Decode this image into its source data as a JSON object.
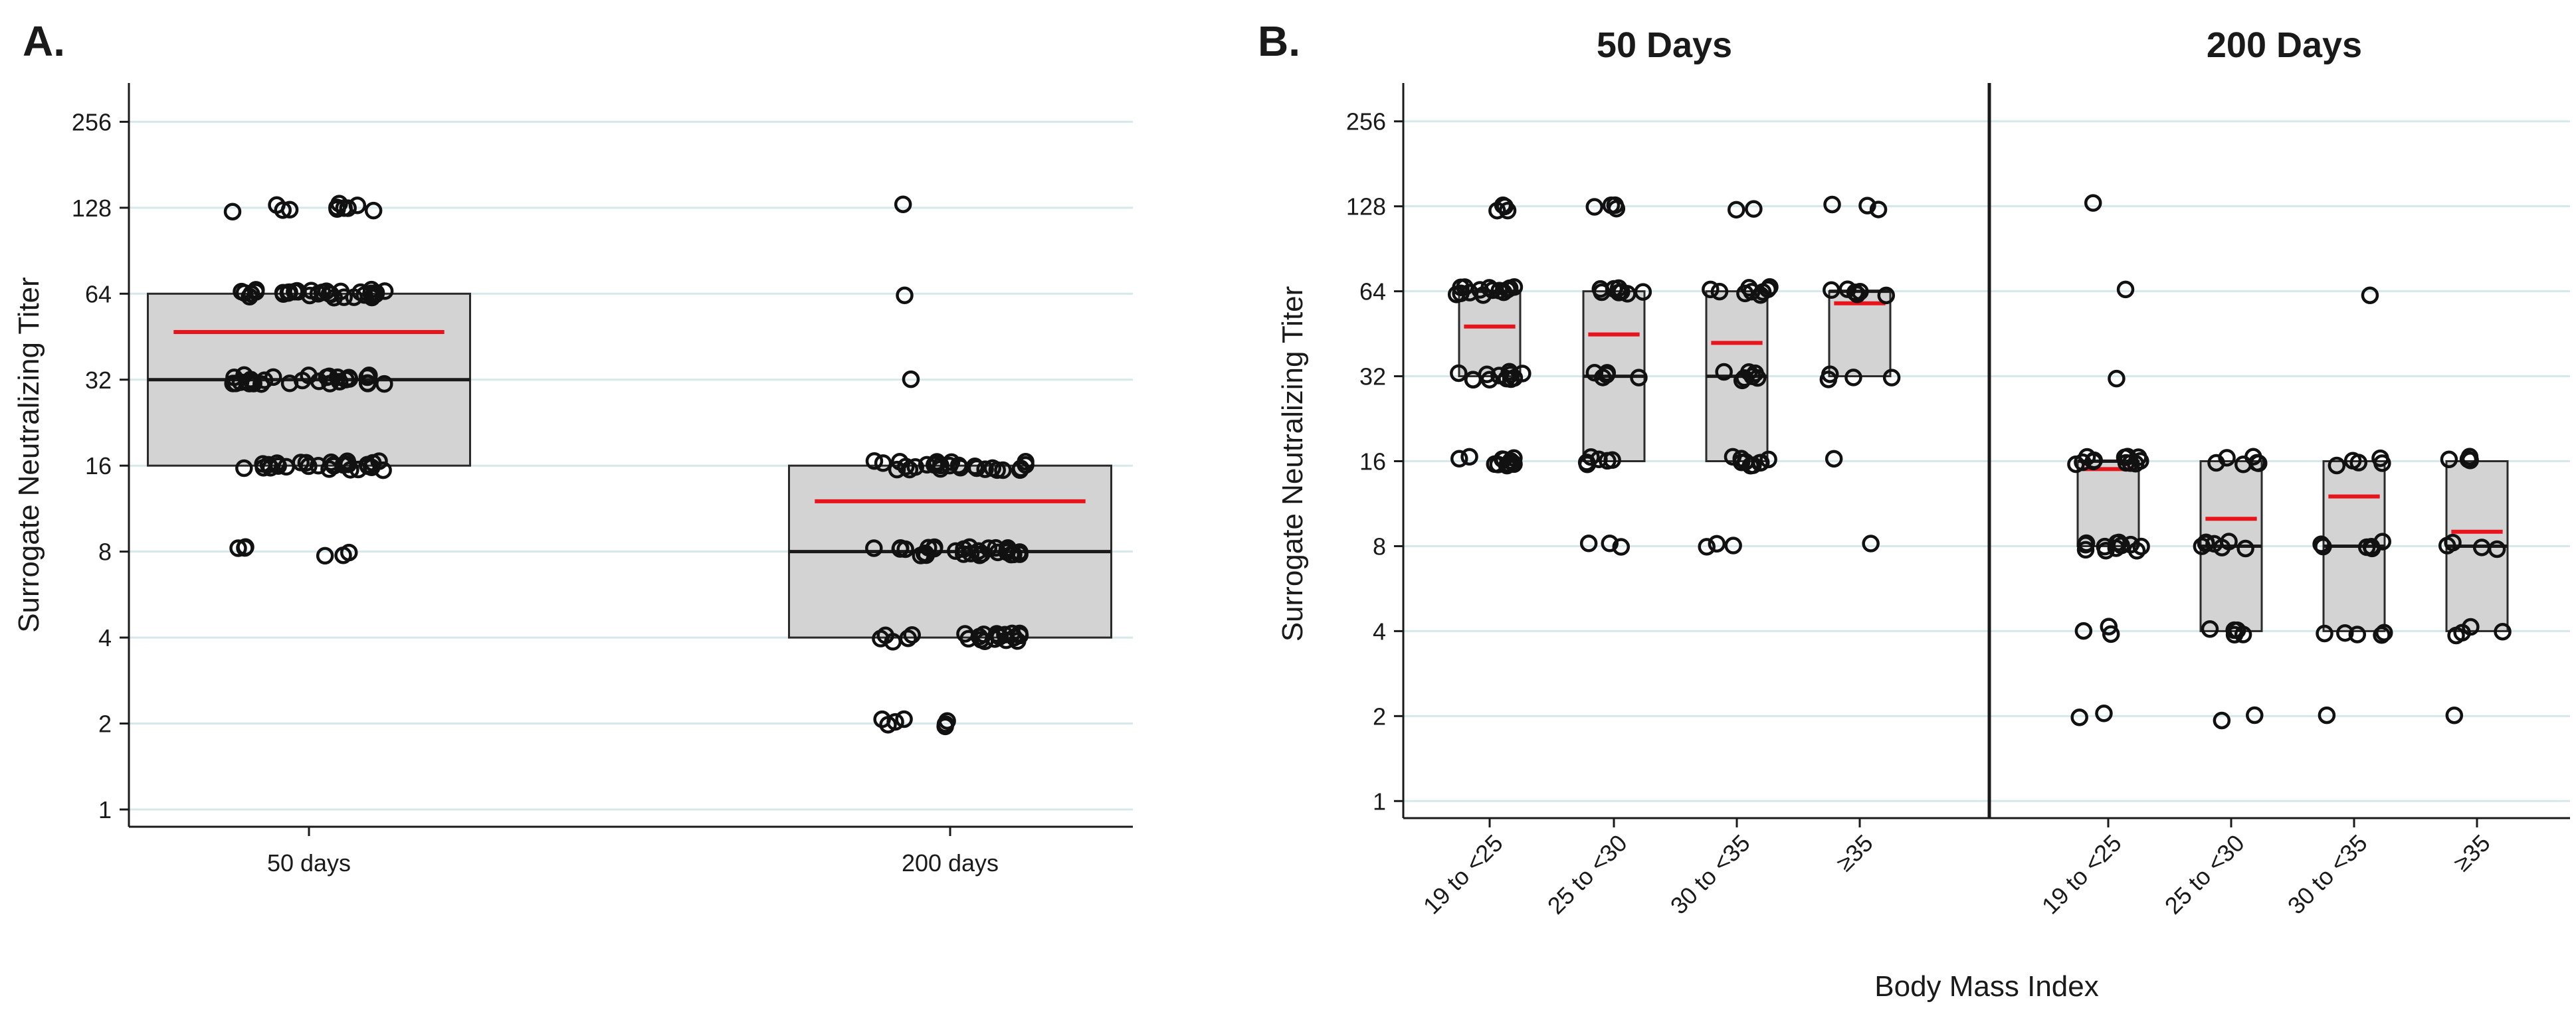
{
  "chart_data": [
    {
      "panel": "A.",
      "type": "box-strip",
      "ylabel": "Surrogate Neutralizing Titer",
      "xlabel": "",
      "y_scale": "log2",
      "yticks": [
        1,
        2,
        4,
        8,
        16,
        32,
        64,
        128,
        256
      ],
      "ytick_labels": [
        "1",
        "2",
        "4",
        "8",
        "16",
        "32",
        "64",
        "128",
        "256"
      ],
      "ylim": [
        0.87,
        350
      ],
      "grid": true,
      "categories": [
        "50 days",
        "200 days"
      ],
      "boxes": [
        {
          "q1": 16,
          "median": 32,
          "q3": 64,
          "mean": 47
        },
        {
          "q1": 4,
          "median": 8,
          "q3": 16,
          "mean": 12
        }
      ],
      "points": [
        [
          {
            "v": 128,
            "n": 11
          },
          {
            "v": 64,
            "n": 34
          },
          {
            "v": 32,
            "n": 30
          },
          {
            "v": 16,
            "n": 28
          },
          {
            "v": 8,
            "n": 6
          }
        ],
        [
          {
            "v": 128,
            "n": 1
          },
          {
            "v": 64,
            "n": 1
          },
          {
            "v": 32,
            "n": 1
          },
          {
            "v": 16,
            "n": 28
          },
          {
            "v": 8,
            "n": 30
          },
          {
            "v": 4,
            "n": 22
          },
          {
            "v": 2,
            "n": 7
          }
        ]
      ]
    },
    {
      "panel": "B.",
      "type": "box-strip",
      "ylabel": "Surrogate Neutralizing Titer",
      "xlabel": "Body Mass Index",
      "y_scale": "log2",
      "yticks": [
        1,
        2,
        4,
        8,
        16,
        32,
        64,
        128,
        256
      ],
      "ytick_labels": [
        "1",
        "2",
        "4",
        "8",
        "16",
        "32",
        "64",
        "128",
        "256"
      ],
      "ylim": [
        0.87,
        350
      ],
      "grid": true,
      "groups": [
        "50 Days",
        "200 Days"
      ],
      "categories": [
        "19 to <25",
        "25 to <30",
        "30 to <35",
        "≥35",
        "19 to <25",
        "25 to <30",
        "30 to <35",
        "≥35"
      ],
      "boxes": [
        {
          "q1": 32,
          "median": 64,
          "q3": 64,
          "mean": 48
        },
        {
          "q1": 16,
          "median": 32,
          "q3": 64,
          "mean": 45
        },
        {
          "q1": 16,
          "median": 32,
          "q3": 64,
          "mean": 42
        },
        {
          "q1": 32,
          "median": 64,
          "q3": 64,
          "mean": 58
        },
        {
          "q1": 8,
          "median": 16,
          "q3": 16,
          "mean": 15
        },
        {
          "q1": 4,
          "median": 8,
          "q3": 16,
          "mean": 10
        },
        {
          "q1": 4,
          "median": 8,
          "q3": 16,
          "mean": 12
        },
        {
          "q1": 4,
          "median": 8,
          "q3": 16,
          "mean": 9
        }
      ],
      "points": [
        [
          {
            "v": 128,
            "n": 4
          },
          {
            "v": 64,
            "n": 14
          },
          {
            "v": 32,
            "n": 12
          },
          {
            "v": 16,
            "n": 12
          }
        ],
        [
          {
            "v": 128,
            "n": 4
          },
          {
            "v": 64,
            "n": 8
          },
          {
            "v": 32,
            "n": 5
          },
          {
            "v": 16,
            "n": 6
          },
          {
            "v": 8,
            "n": 3
          }
        ],
        [
          {
            "v": 128,
            "n": 2
          },
          {
            "v": 64,
            "n": 9
          },
          {
            "v": 32,
            "n": 7
          },
          {
            "v": 16,
            "n": 9
          },
          {
            "v": 8,
            "n": 3
          }
        ],
        [
          {
            "v": 128,
            "n": 3
          },
          {
            "v": 64,
            "n": 7
          },
          {
            "v": 32,
            "n": 4
          },
          {
            "v": 16,
            "n": 1
          },
          {
            "v": 8,
            "n": 1
          }
        ],
        [
          {
            "v": 128,
            "n": 1
          },
          {
            "v": 64,
            "n": 1
          },
          {
            "v": 32,
            "n": 1
          },
          {
            "v": 16,
            "n": 12
          },
          {
            "v": 8,
            "n": 12
          },
          {
            "v": 4,
            "n": 3
          },
          {
            "v": 2,
            "n": 2
          }
        ],
        [
          {
            "v": 16,
            "n": 6
          },
          {
            "v": 8,
            "n": 7
          },
          {
            "v": 4,
            "n": 5
          },
          {
            "v": 2,
            "n": 2
          }
        ],
        [
          {
            "v": 64,
            "n": 1
          },
          {
            "v": 16,
            "n": 5
          },
          {
            "v": 8,
            "n": 6
          },
          {
            "v": 4,
            "n": 5
          },
          {
            "v": 2,
            "n": 1
          }
        ],
        [
          {
            "v": 16,
            "n": 4
          },
          {
            "v": 8,
            "n": 4
          },
          {
            "v": 4,
            "n": 4
          },
          {
            "v": 2,
            "n": 1
          }
        ]
      ]
    }
  ]
}
